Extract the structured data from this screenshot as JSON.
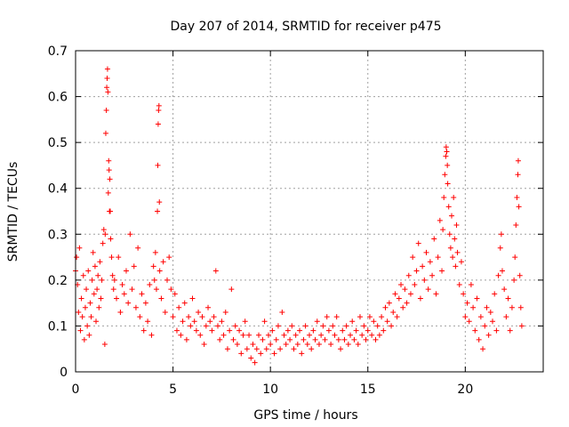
{
  "chart_data": {
    "type": "scatter",
    "title": "Day 207 of 2014, SRMTID for receiver p475",
    "xlabel": "GPS time / hours",
    "ylabel": "SRMTID / TECUs",
    "xlim": [
      0,
      24
    ],
    "ylim": [
      0,
      0.7
    ],
    "xticks": [
      0,
      5,
      10,
      15,
      20
    ],
    "xtick_labels": [
      "0",
      "5",
      "10",
      "15",
      "20"
    ],
    "yticks": [
      0,
      0.1,
      0.2,
      0.3,
      0.4,
      0.5,
      0.6,
      0.7
    ],
    "ytick_labels": [
      "0",
      "0.1",
      "0.2",
      "0.3",
      "0.4",
      "0.5",
      "0.6",
      "0.7"
    ],
    "grid": true,
    "marker": "+",
    "series": [
      {
        "name": "SRMTID",
        "color": "#ff0000",
        "points": [
          [
            0.0,
            0.22
          ],
          [
            0.05,
            0.25
          ],
          [
            0.1,
            0.19
          ],
          [
            0.15,
            0.13
          ],
          [
            0.2,
            0.27
          ],
          [
            0.25,
            0.09
          ],
          [
            0.3,
            0.16
          ],
          [
            0.35,
            0.12
          ],
          [
            0.4,
            0.21
          ],
          [
            0.45,
            0.07
          ],
          [
            0.5,
            0.14
          ],
          [
            0.55,
            0.18
          ],
          [
            0.6,
            0.1
          ],
          [
            0.65,
            0.22
          ],
          [
            0.7,
            0.08
          ],
          [
            0.75,
            0.15
          ],
          [
            0.8,
            0.12
          ],
          [
            0.85,
            0.2
          ],
          [
            0.9,
            0.26
          ],
          [
            0.95,
            0.17
          ],
          [
            1.0,
            0.23
          ],
          [
            1.05,
            0.11
          ],
          [
            1.1,
            0.18
          ],
          [
            1.15,
            0.21
          ],
          [
            1.2,
            0.14
          ],
          [
            1.25,
            0.24
          ],
          [
            1.3,
            0.16
          ],
          [
            1.35,
            0.2
          ],
          [
            1.4,
            0.28
          ],
          [
            1.45,
            0.31
          ],
          [
            1.5,
            0.06
          ],
          [
            1.52,
            0.3
          ],
          [
            1.55,
            0.52
          ],
          [
            1.58,
            0.57
          ],
          [
            1.6,
            0.62
          ],
          [
            1.62,
            0.64
          ],
          [
            1.64,
            0.66
          ],
          [
            1.66,
            0.61
          ],
          [
            1.68,
            0.39
          ],
          [
            1.7,
            0.46
          ],
          [
            1.72,
            0.44
          ],
          [
            1.74,
            0.35
          ],
          [
            1.76,
            0.42
          ],
          [
            1.78,
            0.35
          ],
          [
            1.8,
            0.29
          ],
          [
            1.85,
            0.25
          ],
          [
            1.9,
            0.21
          ],
          [
            1.95,
            0.18
          ],
          [
            2.0,
            0.2
          ],
          [
            2.1,
            0.16
          ],
          [
            2.2,
            0.25
          ],
          [
            2.3,
            0.13
          ],
          [
            2.4,
            0.19
          ],
          [
            2.5,
            0.17
          ],
          [
            2.6,
            0.22
          ],
          [
            2.7,
            0.15
          ],
          [
            2.8,
            0.3
          ],
          [
            2.9,
            0.18
          ],
          [
            3.0,
            0.23
          ],
          [
            3.1,
            0.14
          ],
          [
            3.2,
            0.27
          ],
          [
            3.3,
            0.12
          ],
          [
            3.4,
            0.17
          ],
          [
            3.5,
            0.09
          ],
          [
            3.6,
            0.15
          ],
          [
            3.7,
            0.11
          ],
          [
            3.8,
            0.19
          ],
          [
            3.9,
            0.08
          ],
          [
            4.0,
            0.23
          ],
          [
            4.05,
            0.2
          ],
          [
            4.1,
            0.26
          ],
          [
            4.15,
            0.18
          ],
          [
            4.2,
            0.35
          ],
          [
            4.22,
            0.45
          ],
          [
            4.24,
            0.54
          ],
          [
            4.26,
            0.57
          ],
          [
            4.28,
            0.58
          ],
          [
            4.3,
            0.37
          ],
          [
            4.32,
            0.22
          ],
          [
            4.4,
            0.16
          ],
          [
            4.5,
            0.24
          ],
          [
            4.6,
            0.13
          ],
          [
            4.7,
            0.2
          ],
          [
            4.8,
            0.25
          ],
          [
            4.9,
            0.18
          ],
          [
            5.0,
            0.12
          ],
          [
            5.1,
            0.17
          ],
          [
            5.2,
            0.09
          ],
          [
            5.3,
            0.14
          ],
          [
            5.4,
            0.08
          ],
          [
            5.5,
            0.11
          ],
          [
            5.6,
            0.15
          ],
          [
            5.7,
            0.07
          ],
          [
            5.8,
            0.12
          ],
          [
            5.9,
            0.1
          ],
          [
            6.0,
            0.16
          ],
          [
            6.1,
            0.11
          ],
          [
            6.2,
            0.09
          ],
          [
            6.3,
            0.13
          ],
          [
            6.4,
            0.08
          ],
          [
            6.5,
            0.12
          ],
          [
            6.6,
            0.06
          ],
          [
            6.7,
            0.1
          ],
          [
            6.8,
            0.14
          ],
          [
            6.9,
            0.11
          ],
          [
            7.0,
            0.09
          ],
          [
            7.1,
            0.12
          ],
          [
            7.2,
            0.22
          ],
          [
            7.3,
            0.1
          ],
          [
            7.4,
            0.07
          ],
          [
            7.5,
            0.11
          ],
          [
            7.6,
            0.08
          ],
          [
            7.7,
            0.13
          ],
          [
            7.8,
            0.05
          ],
          [
            7.9,
            0.09
          ],
          [
            8.0,
            0.18
          ],
          [
            8.1,
            0.07
          ],
          [
            8.2,
            0.1
          ],
          [
            8.3,
            0.06
          ],
          [
            8.4,
            0.09
          ],
          [
            8.5,
            0.04
          ],
          [
            8.6,
            0.08
          ],
          [
            8.7,
            0.11
          ],
          [
            8.8,
            0.05
          ],
          [
            8.9,
            0.08
          ],
          [
            9.0,
            0.03
          ],
          [
            9.1,
            0.06
          ],
          [
            9.2,
            0.02
          ],
          [
            9.3,
            0.05
          ],
          [
            9.4,
            0.08
          ],
          [
            9.5,
            0.04
          ],
          [
            9.6,
            0.07
          ],
          [
            9.7,
            0.11
          ],
          [
            9.8,
            0.05
          ],
          [
            9.9,
            0.08
          ],
          [
            10.0,
            0.06
          ],
          [
            10.1,
            0.09
          ],
          [
            10.2,
            0.04
          ],
          [
            10.3,
            0.07
          ],
          [
            10.4,
            0.1
          ],
          [
            10.5,
            0.05
          ],
          [
            10.6,
            0.13
          ],
          [
            10.7,
            0.08
          ],
          [
            10.8,
            0.06
          ],
          [
            10.9,
            0.09
          ],
          [
            11.0,
            0.07
          ],
          [
            11.1,
            0.1
          ],
          [
            11.2,
            0.05
          ],
          [
            11.3,
            0.08
          ],
          [
            11.4,
            0.06
          ],
          [
            11.5,
            0.09
          ],
          [
            11.6,
            0.04
          ],
          [
            11.7,
            0.07
          ],
          [
            11.8,
            0.1
          ],
          [
            11.9,
            0.06
          ],
          [
            12.0,
            0.08
          ],
          [
            12.1,
            0.05
          ],
          [
            12.2,
            0.09
          ],
          [
            12.3,
            0.07
          ],
          [
            12.4,
            0.11
          ],
          [
            12.5,
            0.06
          ],
          [
            12.6,
            0.08
          ],
          [
            12.7,
            0.1
          ],
          [
            12.8,
            0.07
          ],
          [
            12.9,
            0.12
          ],
          [
            13.0,
            0.09
          ],
          [
            13.1,
            0.06
          ],
          [
            13.2,
            0.1
          ],
          [
            13.3,
            0.08
          ],
          [
            13.4,
            0.12
          ],
          [
            13.5,
            0.07
          ],
          [
            13.6,
            0.05
          ],
          [
            13.7,
            0.09
          ],
          [
            13.8,
            0.07
          ],
          [
            13.9,
            0.1
          ],
          [
            14.0,
            0.06
          ],
          [
            14.1,
            0.08
          ],
          [
            14.2,
            0.11
          ],
          [
            14.3,
            0.07
          ],
          [
            14.4,
            0.09
          ],
          [
            14.5,
            0.06
          ],
          [
            14.6,
            0.12
          ],
          [
            14.7,
            0.08
          ],
          [
            14.8,
            0.1
          ],
          [
            14.9,
            0.07
          ],
          [
            15.0,
            0.09
          ],
          [
            15.1,
            0.12
          ],
          [
            15.2,
            0.08
          ],
          [
            15.3,
            0.11
          ],
          [
            15.4,
            0.07
          ],
          [
            15.5,
            0.1
          ],
          [
            15.6,
            0.08
          ],
          [
            15.7,
            0.12
          ],
          [
            15.8,
            0.09
          ],
          [
            15.9,
            0.14
          ],
          [
            16.0,
            0.11
          ],
          [
            16.1,
            0.15
          ],
          [
            16.2,
            0.1
          ],
          [
            16.3,
            0.13
          ],
          [
            16.4,
            0.17
          ],
          [
            16.5,
            0.12
          ],
          [
            16.6,
            0.16
          ],
          [
            16.7,
            0.19
          ],
          [
            16.8,
            0.14
          ],
          [
            16.9,
            0.18
          ],
          [
            17.0,
            0.15
          ],
          [
            17.1,
            0.21
          ],
          [
            17.2,
            0.17
          ],
          [
            17.3,
            0.25
          ],
          [
            17.4,
            0.19
          ],
          [
            17.5,
            0.22
          ],
          [
            17.6,
            0.28
          ],
          [
            17.7,
            0.16
          ],
          [
            17.8,
            0.23
          ],
          [
            17.9,
            0.2
          ],
          [
            18.0,
            0.26
          ],
          [
            18.1,
            0.18
          ],
          [
            18.2,
            0.24
          ],
          [
            18.3,
            0.21
          ],
          [
            18.4,
            0.29
          ],
          [
            18.5,
            0.17
          ],
          [
            18.6,
            0.25
          ],
          [
            18.7,
            0.33
          ],
          [
            18.8,
            0.22
          ],
          [
            18.85,
            0.31
          ],
          [
            18.9,
            0.38
          ],
          [
            18.95,
            0.43
          ],
          [
            19.0,
            0.47
          ],
          [
            19.02,
            0.49
          ],
          [
            19.05,
            0.48
          ],
          [
            19.08,
            0.45
          ],
          [
            19.1,
            0.41
          ],
          [
            19.15,
            0.36
          ],
          [
            19.2,
            0.3
          ],
          [
            19.25,
            0.27
          ],
          [
            19.3,
            0.34
          ],
          [
            19.35,
            0.25
          ],
          [
            19.4,
            0.38
          ],
          [
            19.45,
            0.29
          ],
          [
            19.5,
            0.23
          ],
          [
            19.55,
            0.32
          ],
          [
            19.6,
            0.26
          ],
          [
            19.7,
            0.19
          ],
          [
            19.8,
            0.24
          ],
          [
            19.9,
            0.17
          ],
          [
            20.0,
            0.12
          ],
          [
            20.1,
            0.15
          ],
          [
            20.2,
            0.11
          ],
          [
            20.3,
            0.19
          ],
          [
            20.4,
            0.14
          ],
          [
            20.5,
            0.09
          ],
          [
            20.6,
            0.16
          ],
          [
            20.7,
            0.07
          ],
          [
            20.8,
            0.12
          ],
          [
            20.9,
            0.05
          ],
          [
            21.0,
            0.1
          ],
          [
            21.1,
            0.14
          ],
          [
            21.2,
            0.08
          ],
          [
            21.3,
            0.13
          ],
          [
            21.4,
            0.11
          ],
          [
            21.5,
            0.17
          ],
          [
            21.6,
            0.09
          ],
          [
            21.7,
            0.21
          ],
          [
            21.8,
            0.27
          ],
          [
            21.85,
            0.3
          ],
          [
            21.9,
            0.22
          ],
          [
            22.0,
            0.18
          ],
          [
            22.1,
            0.12
          ],
          [
            22.2,
            0.16
          ],
          [
            22.3,
            0.09
          ],
          [
            22.4,
            0.14
          ],
          [
            22.5,
            0.2
          ],
          [
            22.55,
            0.25
          ],
          [
            22.6,
            0.32
          ],
          [
            22.65,
            0.38
          ],
          [
            22.7,
            0.43
          ],
          [
            22.72,
            0.46
          ],
          [
            22.75,
            0.36
          ],
          [
            22.8,
            0.21
          ],
          [
            22.85,
            0.14
          ],
          [
            22.9,
            0.1
          ]
        ]
      }
    ]
  }
}
